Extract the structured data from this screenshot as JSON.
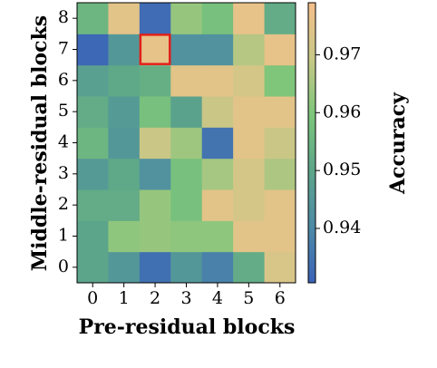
{
  "chart_data": {
    "type": "heatmap",
    "x_label": "Pre-residual blocks",
    "y_label": "Middle-residual blocks",
    "colorbar_label": "Accuracy",
    "x": [
      0,
      1,
      2,
      3,
      4,
      5,
      6
    ],
    "y": [
      0,
      1,
      2,
      3,
      4,
      5,
      6,
      7,
      8
    ],
    "values": [
      [
        0.95,
        0.945,
        0.934,
        0.945,
        0.938,
        0.952,
        0.973
      ],
      [
        0.95,
        0.962,
        0.963,
        0.962,
        0.962,
        0.975,
        0.975
      ],
      [
        0.952,
        0.952,
        0.963,
        0.958,
        0.975,
        0.972,
        0.975
      ],
      [
        0.946,
        0.951,
        0.943,
        0.958,
        0.965,
        0.972,
        0.966
      ],
      [
        0.955,
        0.945,
        0.97,
        0.964,
        0.935,
        0.975,
        0.97
      ],
      [
        0.952,
        0.946,
        0.958,
        0.949,
        0.97,
        0.975,
        0.975
      ],
      [
        0.948,
        0.951,
        0.953,
        0.975,
        0.975,
        0.972,
        0.96
      ],
      [
        0.932,
        0.945,
        0.976,
        0.943,
        0.943,
        0.967,
        0.976
      ],
      [
        0.955,
        0.975,
        0.933,
        0.963,
        0.958,
        0.976,
        0.952
      ]
    ],
    "highlight": {
      "x": 2,
      "y": 7,
      "color": "#e0201b"
    },
    "colormap": [
      "#3a62b8",
      "#4d8aa6",
      "#5ca58a",
      "#7cc57a",
      "#c7c886",
      "#f5bf8a"
    ],
    "clim": [
      0.9306,
      0.979
    ],
    "cticks": [
      0.94,
      0.95,
      0.96,
      0.97
    ]
  }
}
